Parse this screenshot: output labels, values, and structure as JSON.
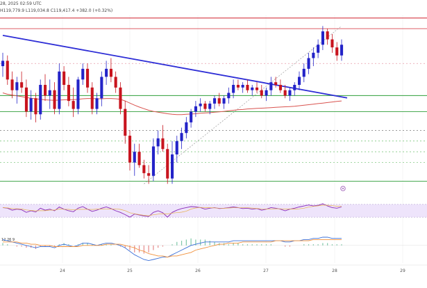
{
  "header": {
    "date_fragment": "28, 2025 02:59 UTC",
    "ohlc_text": "H119,779.9  L119,034.8  C119,417.4  +382.0 (+0.32%)"
  },
  "macd_label": "12 26 9",
  "colors": {
    "bull": "#2323c8",
    "bear": "#c8141e",
    "trendline": "#2e2ed6",
    "ma": "#d9534f",
    "resistance": "#d94b55",
    "support": "#2e9e3a",
    "fib_pink": "#e89aa8",
    "fib_green": "#6cbf6c",
    "fib_gray": "#777777",
    "rsi_line": "#8a2bb8",
    "rsi_bg": "#eee4fb",
    "macd_line": "#3a6fd8",
    "signal_line": "#f0903a",
    "hist_bull": "#7fc8a8",
    "hist_bear": "#e58a8a"
  },
  "chart_data": {
    "type": "candlestick",
    "x_labels": [
      "24",
      "25",
      "26",
      "27",
      "28",
      "29"
    ],
    "price_range": [
      114500,
      121000
    ],
    "candles": [
      [
        119100,
        119600,
        118700,
        119300
      ],
      [
        119300,
        119500,
        118400,
        118600
      ],
      [
        118600,
        118900,
        117900,
        118200
      ],
      [
        118200,
        118700,
        117700,
        118500
      ],
      [
        118500,
        118900,
        118100,
        118300
      ],
      [
        118300,
        118600,
        117200,
        117400
      ],
      [
        117400,
        118200,
        117100,
        117900
      ],
      [
        117900,
        118100,
        117000,
        117300
      ],
      [
        117300,
        118600,
        117100,
        118400
      ],
      [
        118400,
        118800,
        117800,
        118000
      ],
      [
        118000,
        118600,
        117500,
        118200
      ],
      [
        118200,
        118500,
        117300,
        117500
      ],
      [
        117500,
        119200,
        117300,
        118900
      ],
      [
        118900,
        119100,
        118200,
        118400
      ],
      [
        118400,
        118700,
        117600,
        117800
      ],
      [
        117800,
        118300,
        117200,
        117500
      ],
      [
        117500,
        118700,
        117300,
        118600
      ],
      [
        118600,
        119200,
        118400,
        119000
      ],
      [
        119000,
        119200,
        118100,
        118300
      ],
      [
        118300,
        118500,
        117300,
        117500
      ],
      [
        117500,
        118100,
        117300,
        117900
      ],
      [
        117900,
        118900,
        117600,
        118700
      ],
      [
        118700,
        119300,
        118400,
        119000
      ],
      [
        119000,
        119400,
        118500,
        118700
      ],
      [
        118700,
        118900,
        118100,
        118300
      ],
      [
        118300,
        118500,
        117300,
        117500
      ],
      [
        117500,
        117800,
        116200,
        116500
      ],
      [
        116500,
        116700,
        115200,
        115500
      ],
      [
        115500,
        116200,
        115000,
        115900
      ],
      [
        115900,
        116200,
        115300,
        115400
      ],
      [
        115400,
        115600,
        114900,
        115100
      ],
      [
        115100,
        115400,
        114700,
        115000
      ],
      [
        115000,
        116400,
        114800,
        116100
      ],
      [
        116100,
        116700,
        115800,
        116400
      ],
      [
        116400,
        116900,
        115900,
        116000
      ],
      [
        116000,
        116200,
        114700,
        114900
      ],
      [
        114900,
        116300,
        114700,
        115800
      ],
      [
        115800,
        116500,
        115500,
        116300
      ],
      [
        116300,
        116800,
        116000,
        116600
      ],
      [
        116600,
        117200,
        116400,
        117000
      ],
      [
        117000,
        117500,
        116800,
        117400
      ],
      [
        117400,
        117800,
        117200,
        117600
      ],
      [
        117600,
        117900,
        117400,
        117700
      ],
      [
        117700,
        117800,
        117400,
        117500
      ],
      [
        117500,
        117800,
        117300,
        117700
      ],
      [
        117700,
        118000,
        117500,
        117900
      ],
      [
        117900,
        118100,
        117600,
        117700
      ],
      [
        117700,
        118000,
        117500,
        117900
      ],
      [
        117900,
        118300,
        117700,
        118100
      ],
      [
        118100,
        118600,
        117900,
        118400
      ],
      [
        118400,
        118600,
        118200,
        118300
      ],
      [
        118300,
        118500,
        118100,
        118400
      ],
      [
        118400,
        118600,
        118100,
        118200
      ],
      [
        118200,
        118400,
        118000,
        118300
      ],
      [
        118300,
        118500,
        118100,
        118200
      ],
      [
        118200,
        118400,
        117900,
        118000
      ],
      [
        118000,
        118300,
        117800,
        118200
      ],
      [
        118200,
        118700,
        118000,
        118500
      ],
      [
        118500,
        118700,
        118300,
        118400
      ],
      [
        118400,
        118600,
        118100,
        118200
      ],
      [
        118200,
        118400,
        117900,
        118000
      ],
      [
        118000,
        118300,
        117800,
        118200
      ],
      [
        118200,
        118500,
        118000,
        118400
      ],
      [
        118400,
        118900,
        118200,
        118700
      ],
      [
        118700,
        119200,
        118500,
        119000
      ],
      [
        119000,
        119600,
        118800,
        119400
      ],
      [
        119400,
        119800,
        119100,
        119600
      ],
      [
        119600,
        120100,
        119400,
        119900
      ],
      [
        119900,
        120600,
        119700,
        120400
      ],
      [
        120400,
        120500,
        119900,
        120100
      ],
      [
        120100,
        120300,
        119600,
        119800
      ],
      [
        119800,
        120000,
        119300,
        119500
      ],
      [
        119500,
        120100,
        119300,
        119900
      ]
    ],
    "moving_average": {
      "name": "",
      "values": [
        118100,
        118050,
        118020,
        117990,
        117960,
        117930,
        117900,
        117880,
        117860,
        117840,
        117830,
        117820,
        117830,
        117840,
        117850,
        117850,
        117860,
        117880,
        117890,
        117890,
        117880,
        117880,
        117890,
        117890,
        117880,
        117860,
        117800,
        117720,
        117640,
        117570,
        117510,
        117450,
        117410,
        117380,
        117350,
        117320,
        117300,
        117290,
        117290,
        117300,
        117310,
        117320,
        117340,
        117350,
        117360,
        117380,
        117390,
        117410,
        117430,
        117450,
        117470,
        117480,
        117500,
        117510,
        117520,
        117530,
        117540,
        117550,
        117560,
        117570,
        117580,
        117590,
        117600,
        117620,
        117640,
        117660,
        117680,
        117700,
        117720,
        117740,
        117760,
        117780,
        117800
      ]
    },
    "trendline": [
      [
        0,
        120250
      ],
      [
        72,
        117900
      ]
    ],
    "resistance_levels": [
      120900,
      120500
    ],
    "support_levels": [
      118000,
      117400,
      114800
    ],
    "fib_levels": [
      {
        "price": 119200,
        "style": "pink"
      },
      {
        "price": 116700,
        "style": "gray"
      },
      {
        "price": 116300,
        "style": "green"
      },
      {
        "price": 115900,
        "style": "green"
      },
      {
        "price": 115500,
        "style": "green"
      }
    ],
    "fib_anchor": [
      [
        30,
        114700
      ],
      [
        72,
        120600
      ]
    ],
    "rsi": {
      "range": [
        0,
        100
      ],
      "upper": 70,
      "lower": 30,
      "values": [
        60,
        58,
        52,
        55,
        53,
        45,
        50,
        46,
        58,
        52,
        55,
        50,
        62,
        55,
        50,
        47,
        58,
        63,
        55,
        48,
        52,
        58,
        62,
        57,
        50,
        45,
        38,
        30,
        40,
        37,
        34,
        32,
        45,
        50,
        44,
        30,
        45,
        52,
        57,
        60,
        63,
        62,
        60,
        55,
        58,
        60,
        57,
        58,
        60,
        62,
        60,
        57,
        58,
        55,
        57,
        52,
        55,
        60,
        58,
        55,
        50,
        55,
        58,
        62,
        65,
        68,
        65,
        67,
        72,
        65,
        60,
        58,
        62
      ]
    },
    "macd": {
      "macd": [
        5,
        4,
        3,
        2,
        1,
        0,
        -1,
        -2,
        -1,
        -1,
        -1,
        -2,
        0,
        1,
        0,
        -1,
        0,
        2,
        2,
        1,
        0,
        1,
        2,
        2,
        1,
        0,
        -2,
        -5,
        -8,
        -10,
        -12,
        -13,
        -12,
        -11,
        -10,
        -10,
        -8,
        -6,
        -4,
        -2,
        0,
        1,
        2,
        3,
        3,
        3,
        3,
        3,
        3,
        4,
        4,
        4,
        4,
        4,
        4,
        4,
        4,
        4,
        4,
        4,
        3,
        3,
        4,
        4,
        5,
        5,
        6,
        6,
        7,
        7,
        6,
        6,
        6
      ],
      "signal": [
        3,
        3,
        3,
        3,
        2,
        2,
        1,
        1,
        0,
        0,
        0,
        -1,
        -1,
        -1,
        -1,
        -1,
        -1,
        0,
        0,
        0,
        0,
        0,
        1,
        1,
        1,
        1,
        0,
        -1,
        -2,
        -4,
        -5,
        -7,
        -8,
        -9,
        -9,
        -10,
        -9,
        -9,
        -8,
        -7,
        -6,
        -4,
        -3,
        -2,
        -1,
        0,
        1,
        1,
        2,
        2,
        2,
        3,
        3,
        3,
        3,
        3,
        3,
        3,
        4,
        4,
        4,
        4,
        4,
        4,
        4,
        4,
        5,
        5,
        5,
        5,
        5,
        5,
        5
      ],
      "range": [
        -15,
        10
      ]
    }
  }
}
